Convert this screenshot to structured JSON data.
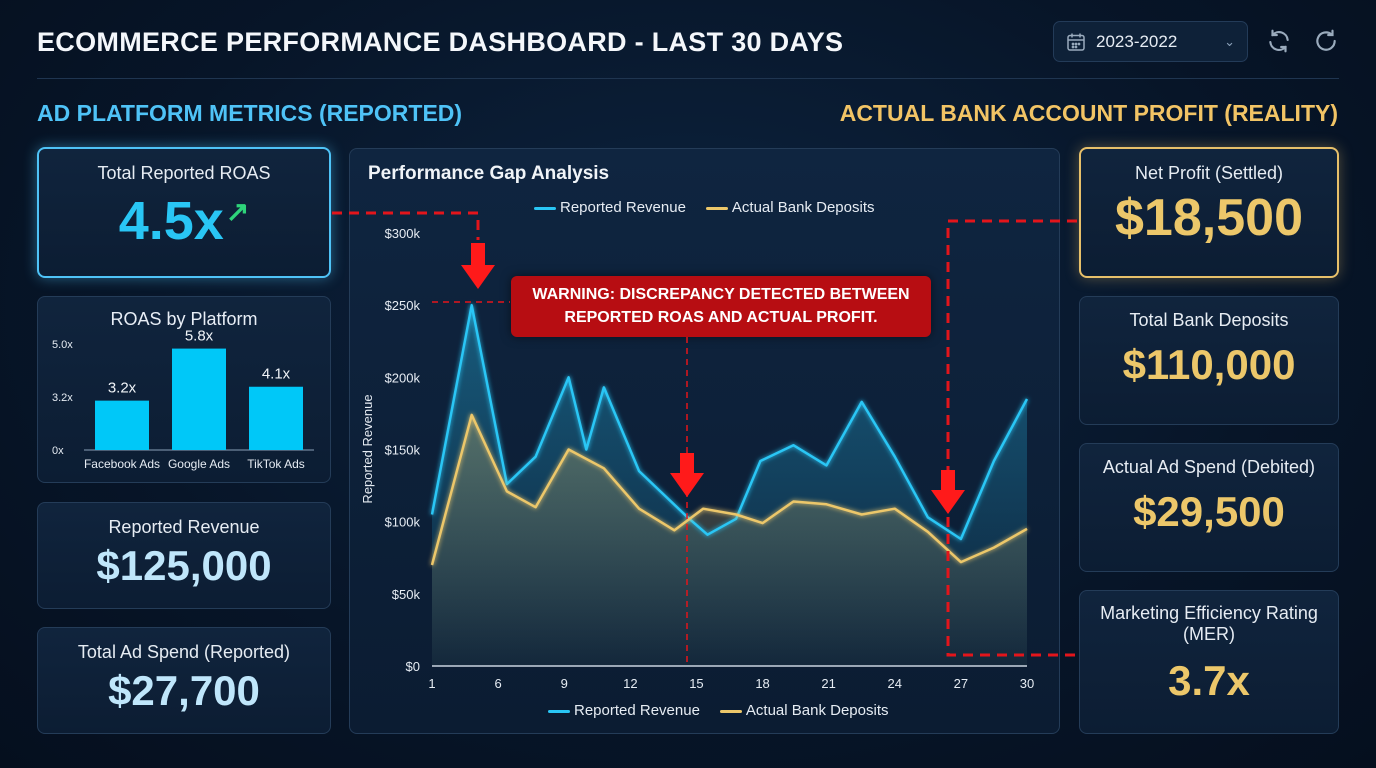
{
  "header": {
    "title": "ECOMMERCE PERFORMANCE DASHBOARD - LAST 30 DAYS",
    "date_range": "2023-2022",
    "icons": [
      "calendar-icon",
      "chevron-down-icon",
      "sync-icon",
      "refresh-icon"
    ]
  },
  "sections": {
    "left": "AD PLATFORM METRICS (REPORTED)",
    "right": "ACTUAL BANK ACCOUNT PROFIT (REALITY)"
  },
  "colors": {
    "reported": "#29c6f5",
    "actual": "#ecc76a",
    "warning": "#b70d12",
    "connector": "#e3151b"
  },
  "left_cards": {
    "roas": {
      "label": "Total Reported ROAS",
      "value": "4.5x",
      "trend": "up"
    },
    "revenue": {
      "label": "Reported Revenue",
      "value": "$125,000"
    },
    "ad_spend": {
      "label": "Total Ad Spend (Reported)",
      "value": "$27,700"
    }
  },
  "right_cards": {
    "net_profit": {
      "label": "Net Profit (Settled)",
      "value": "$18,500"
    },
    "deposits": {
      "label": "Total Bank Deposits",
      "value": "$110,000"
    },
    "actual_spend": {
      "label": "Actual Ad Spend (Debited)",
      "value": "$29,500"
    },
    "mer": {
      "label": "Marketing Efficiency Rating (MER)",
      "value": "3.7x"
    }
  },
  "warning": {
    "line1": "WARNING: DISCREPANCY DETECTED BETWEEN",
    "line2": "REPORTED ROAS AND ACTUAL PROFIT."
  },
  "chart_data": [
    {
      "type": "bar",
      "title": "ROAS by Platform",
      "categories": [
        "Facebook Ads",
        "Google Ads",
        "TikTok Ads"
      ],
      "values": [
        3.2,
        5.8,
        4.1
      ],
      "data_labels": [
        "3.2x",
        "5.8x",
        "4.1x"
      ],
      "y_ticks": [
        "0x",
        "3.2x",
        "5.0x"
      ],
      "color": "#00c8f8"
    },
    {
      "type": "area",
      "title": "Performance Gap Analysis",
      "ylabel": "Reported Revenue",
      "xlabel": "",
      "x_ticks": [
        "1",
        "6",
        "9",
        "12",
        "15",
        "18",
        "21",
        "24",
        "27",
        "30"
      ],
      "y_ticks": [
        "$0",
        "$50k",
        "$100k",
        "$150k",
        "$200k",
        "$250k",
        "$300k"
      ],
      "ylim": [
        0,
        300000
      ],
      "legend": [
        "Reported Revenue",
        "Actual Bank Deposits"
      ],
      "legend_placement": "top and bottom",
      "series": [
        {
          "name": "Reported Revenue",
          "x": [
            1,
            4,
            6.4,
            7.7,
            9.2,
            10,
            10.8,
            12.4,
            14.6,
            15.5,
            16.8,
            17.9,
            19.4,
            20.9,
            22.5,
            24,
            25.5,
            27,
            28.5,
            30
          ],
          "y": [
            105000,
            250000,
            126000,
            145000,
            200000,
            150000,
            193000,
            135000,
            103000,
            91000,
            102000,
            142000,
            153000,
            139000,
            183000,
            145000,
            103000,
            88000,
            142000,
            185000
          ]
        },
        {
          "name": "Actual Bank Deposits",
          "x": [
            1,
            4,
            6.4,
            7.7,
            9.2,
            10.8,
            12.4,
            14,
            15.3,
            16.8,
            18,
            19.4,
            20.9,
            22.5,
            24,
            25.5,
            27,
            28.5,
            30
          ],
          "y": [
            70000,
            174000,
            121000,
            110000,
            150000,
            137000,
            109000,
            94000,
            109000,
            105000,
            99000,
            114000,
            112000,
            105000,
            109000,
            93000,
            72000,
            82000,
            95000
          ]
        }
      ]
    }
  ]
}
